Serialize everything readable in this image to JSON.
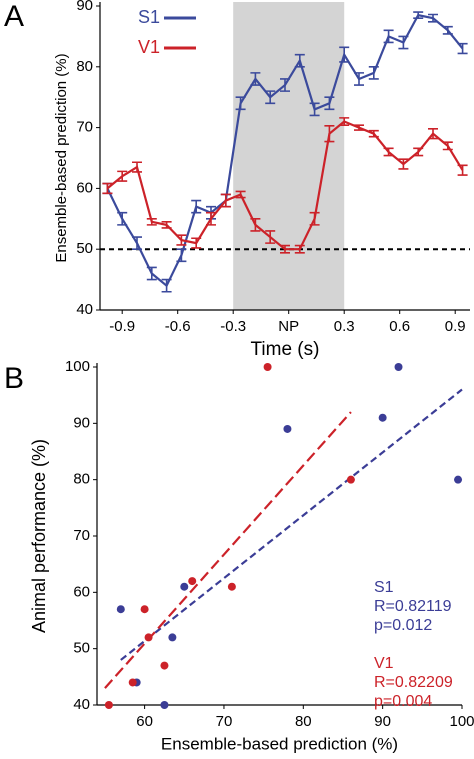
{
  "chart_data": [
    {
      "type": "line",
      "panel": "A",
      "x_label": "Time (s)",
      "y_label": "Ensemble-based prediction (%)",
      "x": [
        -0.98,
        -0.9,
        -0.82,
        -0.74,
        -0.66,
        -0.58,
        -0.5,
        -0.42,
        -0.34,
        -0.26,
        -0.18,
        -0.1,
        -0.02,
        0.06,
        0.14,
        0.22,
        0.3,
        0.38,
        0.46,
        0.54,
        0.62,
        0.7,
        0.78,
        0.86,
        0.94
      ],
      "series": [
        {
          "name": "S1",
          "color": "#3b4a9c",
          "values": [
            60,
            55,
            51,
            46,
            44,
            49,
            57,
            56,
            58,
            74,
            78,
            75,
            77,
            81,
            73,
            74,
            82,
            78,
            79,
            85,
            84,
            88.5,
            88,
            86,
            83
          ],
          "errors": [
            0.8,
            1,
            1,
            1,
            1,
            1,
            1,
            1,
            1,
            1,
            1,
            1,
            1,
            1,
            1,
            1,
            1.2,
            1,
            1,
            1,
            1,
            0.5,
            0.6,
            0.6,
            0.8
          ]
        },
        {
          "name": "V1",
          "color": "#cc2229",
          "values": [
            60,
            62,
            63.5,
            54.5,
            54,
            51.5,
            51,
            55,
            58,
            59,
            54,
            52,
            50,
            50,
            55,
            69,
            71,
            70,
            69,
            66,
            64,
            66,
            69,
            67,
            63
          ],
          "errors": [
            0.8,
            0.8,
            0.8,
            0.5,
            0.5,
            0.8,
            0.8,
            1,
            1,
            0.5,
            1,
            1,
            0.6,
            0.6,
            1,
            1.3,
            0.6,
            0.4,
            0.5,
            0.6,
            0.8,
            0.6,
            0.8,
            0.6,
            0.8
          ]
        }
      ],
      "hline": 50,
      "shade": [
        -0.3,
        0.3
      ],
      "xlim": [
        -1.02,
        0.98
      ],
      "xticks": [
        -0.9,
        -0.6,
        -0.3,
        {
          "value": 0,
          "label": "NP"
        },
        0.3,
        0.6,
        0.9
      ],
      "ylim": [
        40,
        90
      ],
      "yticks": [
        40,
        50,
        60,
        70,
        80,
        90
      ],
      "legend": "upper-left"
    },
    {
      "type": "scatter",
      "panel": "B",
      "x_label": "Ensemble-based prediction (%)",
      "y_label": "Animal performance (%)",
      "series": [
        {
          "name": "S1",
          "color": "#3b3d96",
          "x": [
            57,
            59,
            62.5,
            63.5,
            65,
            78,
            90,
            92,
            99.5
          ],
          "values": [
            57,
            44,
            40,
            52,
            61,
            89,
            91,
            100,
            80
          ],
          "fit_x": [
            57,
            100
          ],
          "fit_y": [
            48,
            96
          ],
          "annotations": [
            "R=0.82119",
            "p=0.012"
          ]
        },
        {
          "name": "V1",
          "color": "#cc2229",
          "x": [
            55.5,
            58.5,
            60.5,
            60,
            62.5,
            66,
            71,
            75.5,
            86
          ],
          "values": [
            40,
            44,
            52,
            57,
            47,
            62,
            61,
            100,
            80
          ],
          "fit_x": [
            55,
            86
          ],
          "fit_y": [
            43,
            92
          ],
          "annotations": [
            "R=0.82209",
            "p=0.004"
          ]
        }
      ],
      "xlim": [
        54,
        100
      ],
      "xticks": [
        60,
        70,
        80,
        90,
        100
      ],
      "ylim": [
        40,
        100
      ],
      "yticks": [
        40,
        50,
        60,
        70,
        80,
        90,
        100
      ]
    }
  ]
}
